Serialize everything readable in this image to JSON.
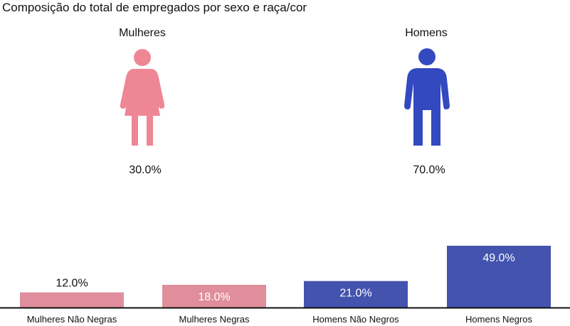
{
  "title": "Composição do total de empregados por sexo e raça/cor",
  "genders": [
    {
      "label": "Mulheres",
      "percent_label": "30.0%",
      "icon": "woman-icon",
      "color": "#EE8695"
    },
    {
      "label": "Homens",
      "percent_label": "70.0%",
      "icon": "man-icon",
      "color": "#3349C0"
    }
  ],
  "chart_data": {
    "type": "bar",
    "categories": [
      "Mulheres Não Negras",
      "Mulheres Negras",
      "Homens Não Negros",
      "Homens Negros"
    ],
    "values": [
      12.0,
      18.0,
      21.0,
      49.0
    ],
    "value_labels": [
      "12.0%",
      "18.0%",
      "21.0%",
      "49.0%"
    ],
    "colors": [
      "#E08E9B",
      "#E08E9B",
      "#4353AE",
      "#4353AE"
    ],
    "label_colors": [
      "#111111",
      "#ffffff",
      "#ffffff",
      "#ffffff"
    ],
    "ylim": [
      0,
      49
    ]
  }
}
